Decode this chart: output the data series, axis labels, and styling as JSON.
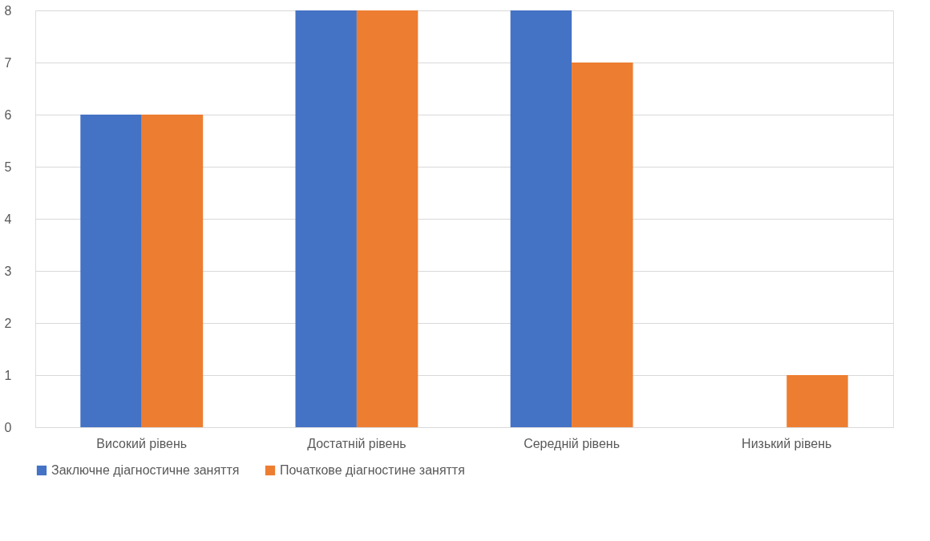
{
  "chart_data": {
    "type": "bar",
    "categories": [
      "Високий рівень",
      "Достатній рівень",
      "Середній рівень",
      "Низький рівень"
    ],
    "series": [
      {
        "name": "Заключне діагностичне заняття",
        "color": "#4472c4",
        "values": [
          6,
          8,
          8,
          0
        ]
      },
      {
        "name": "Початкове діагностине заняття",
        "color": "#ed7d31",
        "values": [
          6,
          8,
          7,
          1
        ]
      }
    ],
    "ylim": [
      0,
      8
    ],
    "yticks": [
      0,
      1,
      2,
      3,
      4,
      5,
      6,
      7,
      8
    ],
    "grid": "y",
    "legend": "bottom"
  }
}
